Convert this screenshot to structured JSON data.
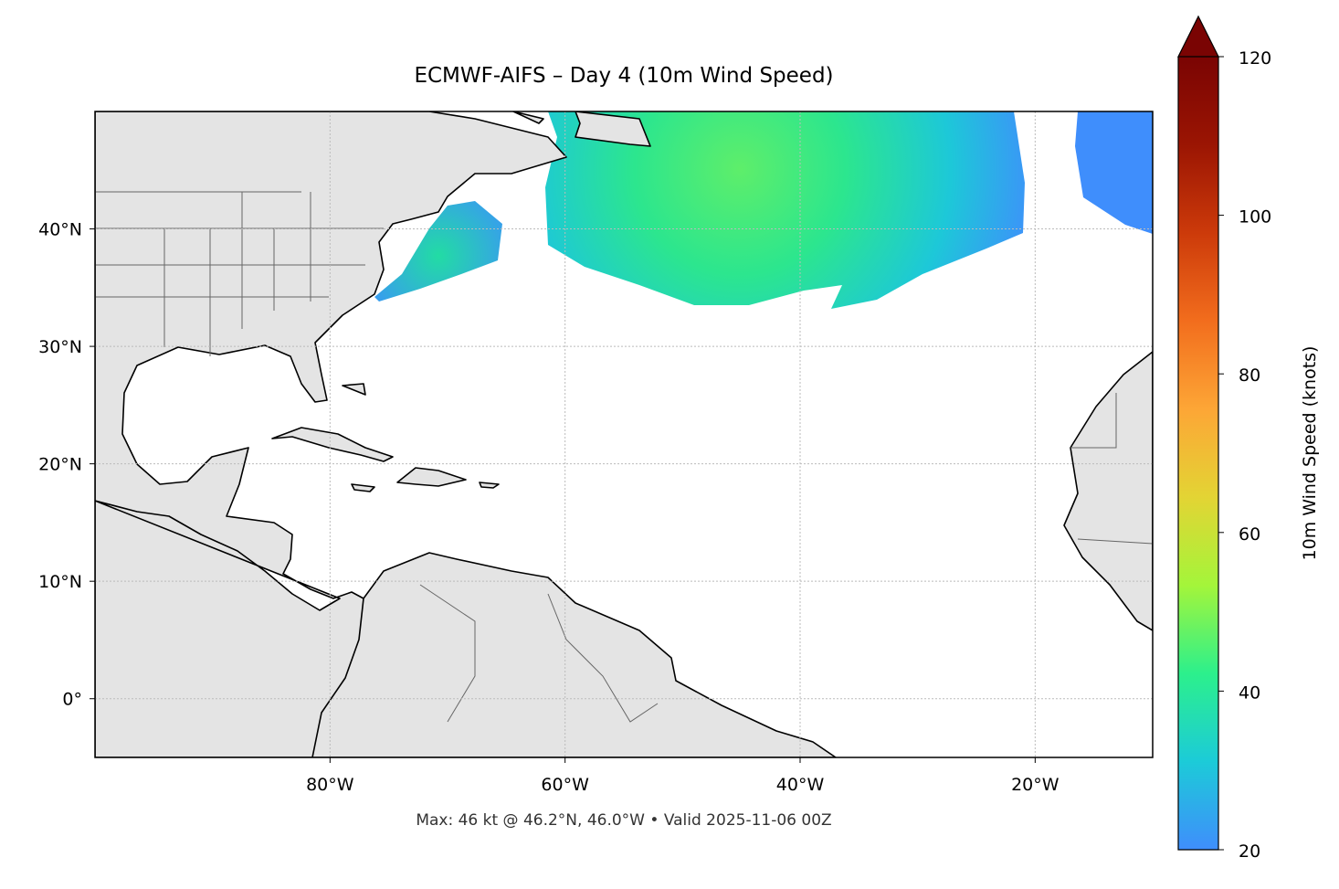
{
  "chart_data": {
    "type": "map",
    "title": "ECMWF-AIFS – Day 4 (10m Wind Speed)",
    "footnote": "Max: 46 kt @ 46.2°N, 46.0°W • Valid 2025-11-06 00Z",
    "xlim": [
      -100,
      -10
    ],
    "ylim": [
      -5,
      50
    ],
    "xticks": [
      {
        "value": -80,
        "label": "80°W"
      },
      {
        "value": -60,
        "label": "60°W"
      },
      {
        "value": -40,
        "label": "40°W"
      },
      {
        "value": -20,
        "label": "20°W"
      }
    ],
    "yticks": [
      {
        "value": 0,
        "label": "0°"
      },
      {
        "value": 10,
        "label": "10°N"
      },
      {
        "value": 20,
        "label": "20°N"
      },
      {
        "value": 30,
        "label": "30°N"
      },
      {
        "value": 40,
        "label": "40°N"
      }
    ],
    "grid": true,
    "colorbar": {
      "label": "10m Wind Speed (knots)",
      "lim": [
        20,
        120
      ],
      "ticks": [
        20,
        40,
        60,
        80,
        100,
        120
      ],
      "colors": [
        "#3f8efc",
        "#1ccbd8",
        "#2cf08c",
        "#a4f53a",
        "#e3d434",
        "#fda636",
        "#f26d1d",
        "#cc3a0a",
        "#9b1503",
        "#7a0403"
      ]
    }
  }
}
